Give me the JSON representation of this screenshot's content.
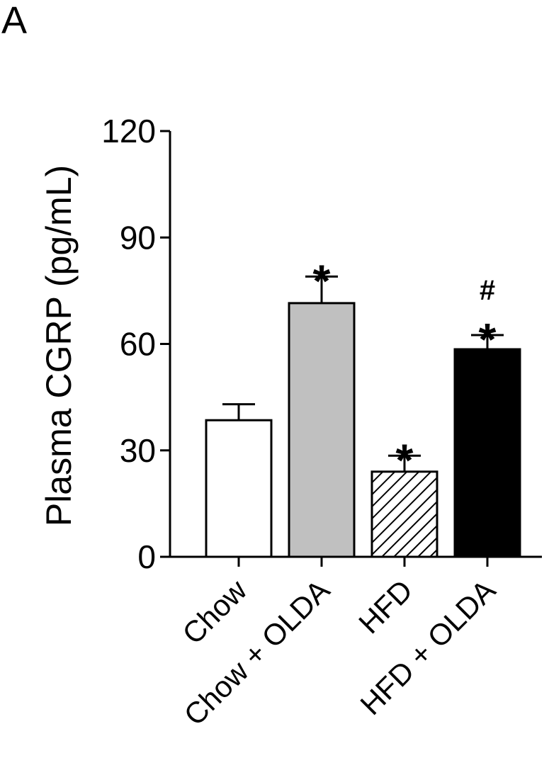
{
  "panel_label": "A",
  "chart_data": {
    "type": "bar",
    "ylabel": "Plasma CGRP (pg/mL)",
    "xlabel": "",
    "ylim": [
      0,
      120
    ],
    "yticks": [
      0,
      30,
      60,
      90,
      120
    ],
    "categories": [
      "Chow",
      "Chow + OLDA",
      "HFD",
      "HFD + OLDA"
    ],
    "values": [
      38.5,
      71.5,
      24,
      58.5
    ],
    "errors": [
      4.5,
      7.5,
      4.5,
      4
    ],
    "fills": [
      "white",
      "gray",
      "hatched",
      "black"
    ],
    "colors": {
      "white": "#ffffff",
      "gray": "#c0c0c0",
      "black": "#000000",
      "stroke": "#000000"
    },
    "annotations": [
      {
        "category": "Chow + OLDA",
        "symbols": [
          "*"
        ]
      },
      {
        "category": "HFD",
        "symbols": [
          "*"
        ]
      },
      {
        "category": "HFD + OLDA",
        "symbols": [
          "*",
          "#"
        ]
      }
    ]
  }
}
